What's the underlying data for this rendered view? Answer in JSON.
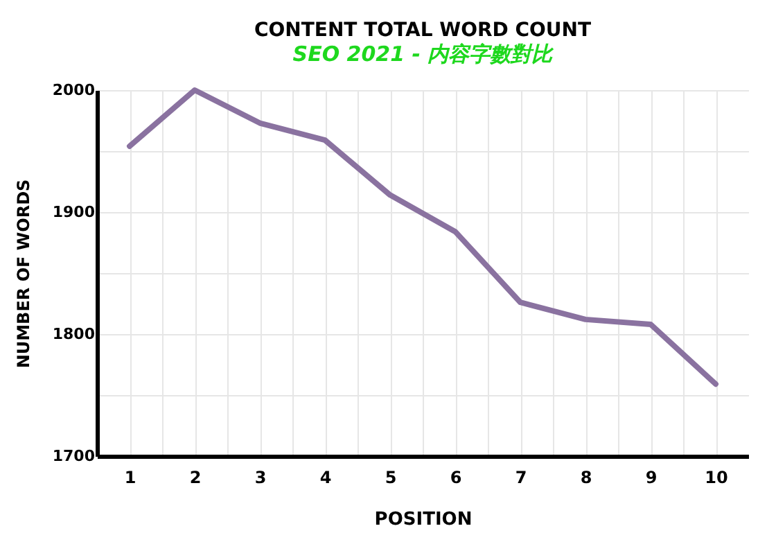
{
  "chart_data": {
    "type": "line",
    "title": "CONTENT TOTAL WORD COUNT",
    "subtitle": "SEO 2021  -  内容字數對比",
    "xlabel": "POSITION",
    "ylabel": "NUMBER OF WORDS",
    "x": [
      1,
      2,
      3,
      4,
      5,
      6,
      7,
      8,
      9,
      10
    ],
    "series": [
      {
        "color": "#8a72a0",
        "values": [
          1954,
          2000,
          1973,
          1959,
          1914,
          1884,
          1826,
          1812,
          1808,
          1759
        ]
      }
    ],
    "xlim": [
      0.5,
      10.5
    ],
    "xticks": [
      1,
      {
        "value": 1.5,
        "label": null
      },
      2,
      {
        "value": 2.5,
        "label": null
      },
      3,
      {
        "value": 3.5,
        "label": null
      },
      4,
      {
        "value": 4.5,
        "label": null
      },
      5,
      {
        "value": 5.5,
        "label": null
      },
      6,
      {
        "value": 6.5,
        "label": null
      },
      7,
      {
        "value": 7.5,
        "label": null
      },
      8,
      {
        "value": 8.5,
        "label": null
      },
      9,
      {
        "value": 9.5,
        "label": null
      },
      10
    ],
    "ylim": [
      1700,
      2000
    ],
    "yticks": [
      1700,
      {
        "value": 1750,
        "label": null
      },
      1800,
      {
        "value": 1850,
        "label": null
      },
      1900,
      {
        "value": 1950,
        "label": null
      },
      2000
    ],
    "grid": true,
    "marker": "none",
    "line_style": "solid"
  }
}
